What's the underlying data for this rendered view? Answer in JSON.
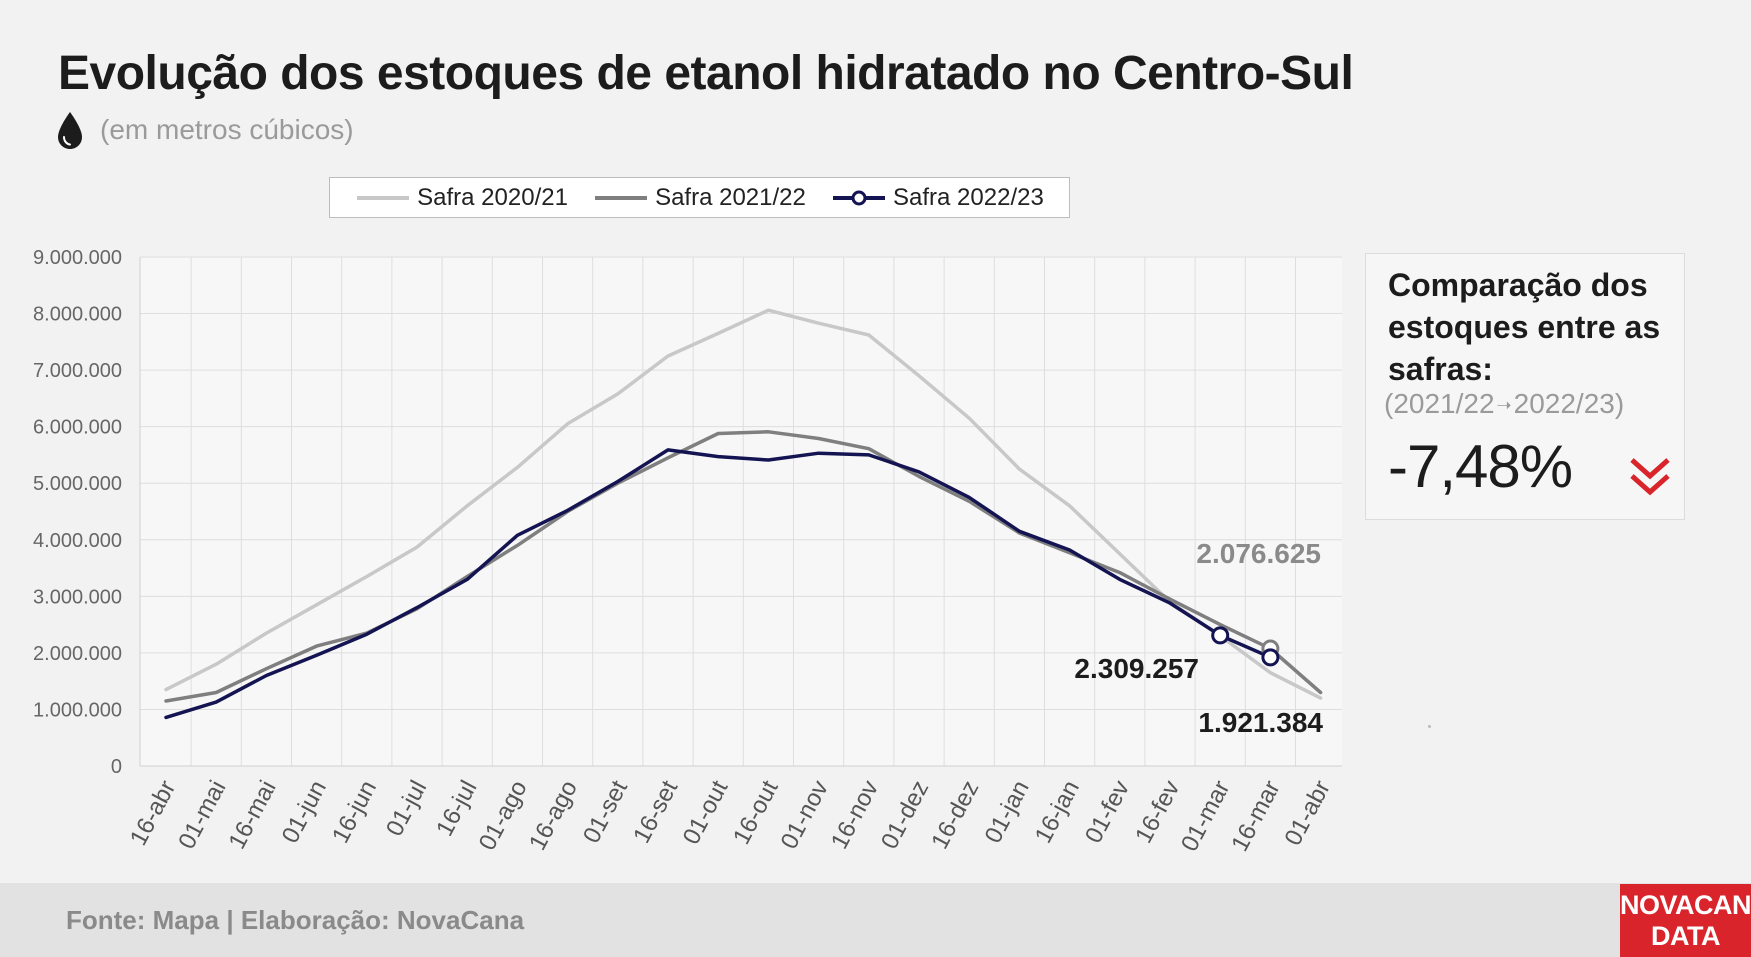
{
  "header": {
    "title": "Evolução dos estoques de etanol hidratado no Centro-Sul",
    "subtitle": "(em metros cúbicos)",
    "icon": "droplet-icon"
  },
  "comparison": {
    "title": "Comparação dos estoques entre as safras:",
    "from": "(2021/22",
    "arrow": "➝",
    "to": "2022/23)",
    "value": "-7,48%",
    "icon": "double-chevron-down-icon",
    "icon_color": "#d9242b"
  },
  "footer": {
    "source": "Fonte: Mapa | Elaboração: NovaCana",
    "brand_line1": "NOVACANA",
    "brand_line2": "DATA",
    "brand_color": "#d9242b"
  },
  "chart_data": {
    "type": "line",
    "categories": [
      "16-abr",
      "01-mai",
      "16-mai",
      "01-jun",
      "16-jun",
      "01-jul",
      "16-jul",
      "01-ago",
      "16-ago",
      "01-set",
      "16-set",
      "01-out",
      "16-out",
      "01-nov",
      "16-nov",
      "01-dez",
      "16-dez",
      "01-jan",
      "16-jan",
      "01-fev",
      "16-fev",
      "01-mar",
      "16-mar",
      "01-abr"
    ],
    "ylim": [
      0,
      9000000
    ],
    "yticks": [
      0,
      1000000,
      2000000,
      3000000,
      4000000,
      5000000,
      6000000,
      7000000,
      8000000,
      9000000
    ],
    "ytick_labels": [
      "0",
      "1.000.000",
      "2.000.000",
      "3.000.000",
      "4.000.000",
      "5.000.000",
      "6.000.000",
      "7.000.000",
      "8.000.000",
      "9.000.000"
    ],
    "grid": true,
    "legend_position": "top",
    "series": [
      {
        "name": "Safra 2020/21",
        "color": "#c8c8c8",
        "values": [
          1350000,
          1800000,
          2350000,
          2850000,
          3350000,
          3870000,
          4600000,
          5280000,
          6050000,
          6580000,
          7250000,
          7650000,
          8060000,
          7830000,
          7620000,
          6900000,
          6150000,
          5250000,
          4600000,
          3750000,
          2900000,
          2300000,
          1650000,
          1200000
        ]
      },
      {
        "name": "Safra 2021/22",
        "color": "#7f7f7f",
        "values": [
          1150000,
          1300000,
          1720000,
          2120000,
          2350000,
          2780000,
          3350000,
          3900000,
          4500000,
          5000000,
          5450000,
          5880000,
          5910000,
          5790000,
          5610000,
          5120000,
          4680000,
          4120000,
          3770000,
          3420000,
          2950000,
          2500000,
          2076625,
          1300000
        ]
      },
      {
        "name": "Safra 2022/23",
        "color": "#141453",
        "values": [
          860000,
          1130000,
          1600000,
          1960000,
          2330000,
          2800000,
          3300000,
          4080000,
          4520000,
          5030000,
          5590000,
          5470000,
          5410000,
          5530000,
          5500000,
          5200000,
          4750000,
          4150000,
          3820000,
          3300000,
          2880000,
          2309257,
          1921384,
          null
        ]
      }
    ],
    "annotations": [
      {
        "label": "2.076.625",
        "series": "Safra 2021/22",
        "category": "16-mar",
        "value": 2076625,
        "color": "#7f7f7f"
      },
      {
        "label": "2.309.257",
        "series": "Safra 2022/23",
        "category": "01-mar",
        "value": 2309257,
        "color": "#141453"
      },
      {
        "label": "1.921.384",
        "series": "Safra 2022/23",
        "category": "16-mar",
        "value": 1921384,
        "color": "#141453"
      }
    ]
  }
}
